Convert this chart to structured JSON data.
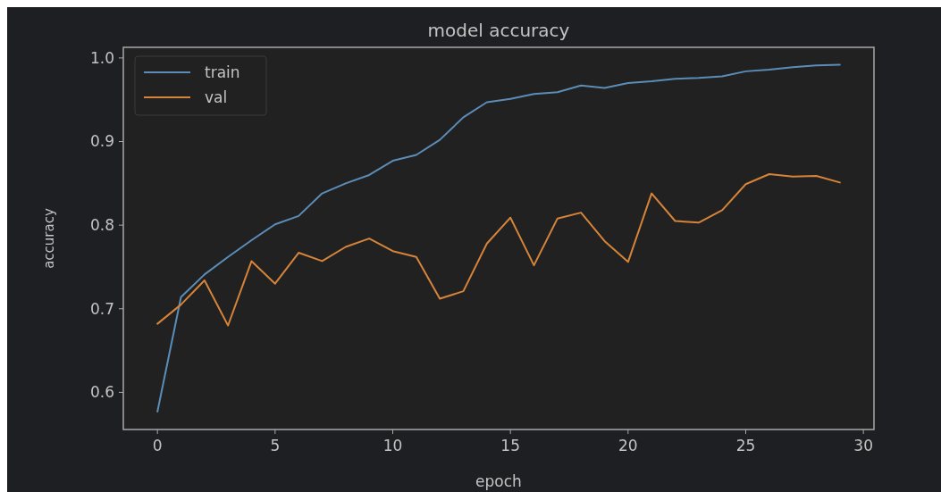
{
  "chart_data": {
    "type": "line",
    "title": "model accuracy",
    "xlabel": "epoch",
    "ylabel": "accuracy",
    "x": [
      0,
      1,
      2,
      3,
      4,
      5,
      6,
      7,
      8,
      9,
      10,
      11,
      12,
      13,
      14,
      15,
      16,
      17,
      18,
      19,
      20,
      21,
      22,
      23,
      24,
      25,
      26,
      27,
      28,
      29
    ],
    "series": [
      {
        "name": "train",
        "color": "#5b8db8",
        "values": [
          0.577,
          0.714,
          0.741,
          0.762,
          0.782,
          0.801,
          0.811,
          0.838,
          0.85,
          0.86,
          0.877,
          0.884,
          0.902,
          0.929,
          0.947,
          0.951,
          0.957,
          0.959,
          0.967,
          0.964,
          0.97,
          0.972,
          0.975,
          0.976,
          0.978,
          0.984,
          0.986,
          0.989,
          0.991,
          0.992
        ]
      },
      {
        "name": "val",
        "color": "#d6843a",
        "values": [
          0.682,
          0.705,
          0.734,
          0.68,
          0.757,
          0.73,
          0.767,
          0.757,
          0.774,
          0.784,
          0.769,
          0.762,
          0.712,
          0.721,
          0.778,
          0.809,
          0.752,
          0.808,
          0.815,
          0.781,
          0.756,
          0.838,
          0.805,
          0.803,
          0.818,
          0.849,
          0.861,
          0.858,
          0.859,
          0.851
        ]
      }
    ],
    "xlim": [
      -1.45,
      30.45
    ],
    "ylim": [
      0.5556,
      1.0127
    ],
    "xticks": [
      0,
      5,
      10,
      15,
      20,
      25,
      30
    ],
    "yticks": [
      0.6,
      0.7,
      0.8,
      0.9,
      {
        "value": 1,
        "label": "1.0"
      }
    ],
    "legend": "top left"
  }
}
